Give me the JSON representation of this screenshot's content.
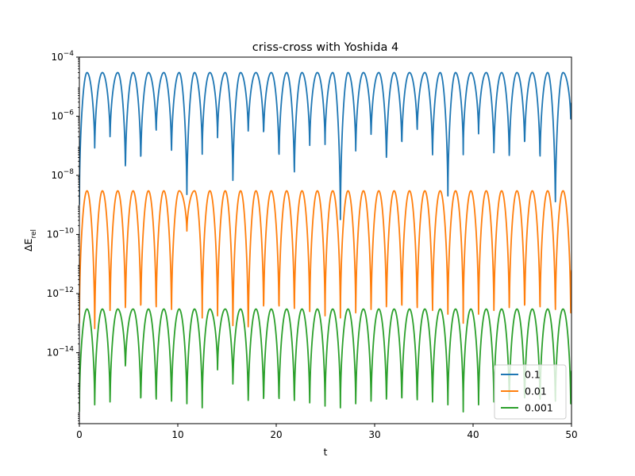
{
  "chart_data": {
    "type": "line",
    "title": "criss-cross with Yoshida 4",
    "xlabel": "t",
    "ylabel": "ΔE_rel",
    "xlim": [
      0,
      50
    ],
    "ylim_log10": [
      -16.4,
      -4
    ],
    "yscale": "log",
    "x_ticks": [
      0,
      10,
      20,
      30,
      40,
      50
    ],
    "y_ticks_exp": [
      -14,
      -12,
      -10,
      -8,
      -6,
      -4
    ],
    "legend_position": "lower-right",
    "oscillation_period": 1.56,
    "series": [
      {
        "name": "0.1",
        "color": "#1f77b4",
        "peak": 3e-05,
        "dip_minima": [
          [
            0.0,
            1e-09
          ],
          [
            1.56,
            5.5e-08
          ],
          [
            3.12,
            1.2e-07
          ],
          [
            4.68,
            8e-09
          ],
          [
            6.24,
            1.6e-08
          ],
          [
            7.8,
            1.8e-07
          ],
          [
            9.36,
            3.5e-08
          ],
          [
            10.92,
            1e-09
          ],
          [
            12.48,
            4e-08
          ],
          [
            14.04,
            1.4e-07
          ],
          [
            15.6,
            3e-09
          ],
          [
            17.16,
            1.8e-07
          ],
          [
            18.72,
            1.5e-07
          ],
          [
            20.28,
            2e-08
          ],
          [
            21.84,
            5e-09
          ],
          [
            23.4,
            6e-08
          ],
          [
            24.96,
            8e-08
          ],
          [
            26.52,
            2e-10
          ],
          [
            28.08,
            4e-08
          ],
          [
            29.64,
            1.4e-07
          ],
          [
            31.2,
            1.6e-08
          ],
          [
            32.76,
            6e-08
          ],
          [
            34.32,
            2e-07
          ],
          [
            35.88,
            2.5e-08
          ],
          [
            37.44,
            1e-09
          ],
          [
            39.0,
            5e-08
          ],
          [
            40.56,
            1.8e-07
          ],
          [
            42.12,
            3e-08
          ],
          [
            43.68,
            2e-08
          ],
          [
            45.24,
            6e-08
          ],
          [
            46.8,
            1.8e-08
          ],
          [
            48.36,
            4e-10
          ],
          [
            49.92,
            6e-07
          ]
        ]
      },
      {
        "name": "0.01",
        "color": "#ff7f0e",
        "peak": 3e-09,
        "dip_minima": [
          [
            0.0,
            1e-13
          ],
          [
            1.56,
            3e-14
          ],
          [
            3.12,
            1e-13
          ],
          [
            4.68,
            1e-13
          ],
          [
            6.24,
            1e-13
          ],
          [
            7.8,
            1e-13
          ],
          [
            9.36,
            1e-13
          ],
          [
            10.92,
            1e-10
          ],
          [
            12.48,
            1e-13
          ],
          [
            14.04,
            1e-13
          ],
          [
            15.6,
            3e-14
          ],
          [
            17.16,
            2e-14
          ],
          [
            18.72,
            1e-13
          ],
          [
            20.28,
            1e-13
          ],
          [
            21.84,
            1e-13
          ],
          [
            23.4,
            1e-13
          ],
          [
            24.96,
            1e-13
          ],
          [
            26.52,
            1e-13
          ],
          [
            28.08,
            1e-13
          ],
          [
            29.64,
            1e-13
          ],
          [
            31.2,
            1e-13
          ],
          [
            32.76,
            1e-13
          ],
          [
            34.32,
            1e-13
          ],
          [
            35.88,
            1e-13
          ],
          [
            37.44,
            1e-13
          ],
          [
            39.0,
            1e-13
          ],
          [
            40.56,
            1e-13
          ],
          [
            42.12,
            1e-13
          ],
          [
            43.68,
            1e-13
          ],
          [
            45.24,
            1e-13
          ],
          [
            46.8,
            1e-13
          ],
          [
            48.36,
            1e-13
          ],
          [
            49.92,
            1e-13
          ]
        ]
      },
      {
        "name": "0.001",
        "color": "#2ca02c",
        "peak": 3e-13,
        "dip_minima": [
          [
            0.0,
            1e-16
          ],
          [
            1.56,
            1e-16
          ],
          [
            3.12,
            1e-16
          ],
          [
            4.68,
            2e-15
          ],
          [
            6.24,
            1e-16
          ],
          [
            7.8,
            1e-16
          ],
          [
            9.36,
            1e-16
          ],
          [
            10.92,
            1e-16
          ],
          [
            12.48,
            1e-16
          ],
          [
            14.04,
            2e-15
          ],
          [
            15.6,
            5e-16
          ],
          [
            17.16,
            1e-16
          ],
          [
            18.72,
            1e-16
          ],
          [
            20.28,
            1e-16
          ],
          [
            21.84,
            1e-16
          ],
          [
            23.4,
            1e-16
          ],
          [
            24.96,
            1e-16
          ],
          [
            26.52,
            1e-16
          ],
          [
            28.08,
            1e-16
          ],
          [
            29.64,
            1e-16
          ],
          [
            31.2,
            1e-16
          ],
          [
            32.76,
            1e-16
          ],
          [
            34.32,
            1e-16
          ],
          [
            35.88,
            1e-16
          ],
          [
            37.44,
            1e-16
          ],
          [
            39.0,
            1e-16
          ],
          [
            40.56,
            1e-16
          ],
          [
            42.12,
            1e-16
          ],
          [
            43.68,
            1e-16
          ],
          [
            45.24,
            1e-16
          ],
          [
            46.8,
            1e-16
          ],
          [
            48.36,
            1e-16
          ],
          [
            49.92,
            1e-16
          ]
        ]
      }
    ]
  }
}
